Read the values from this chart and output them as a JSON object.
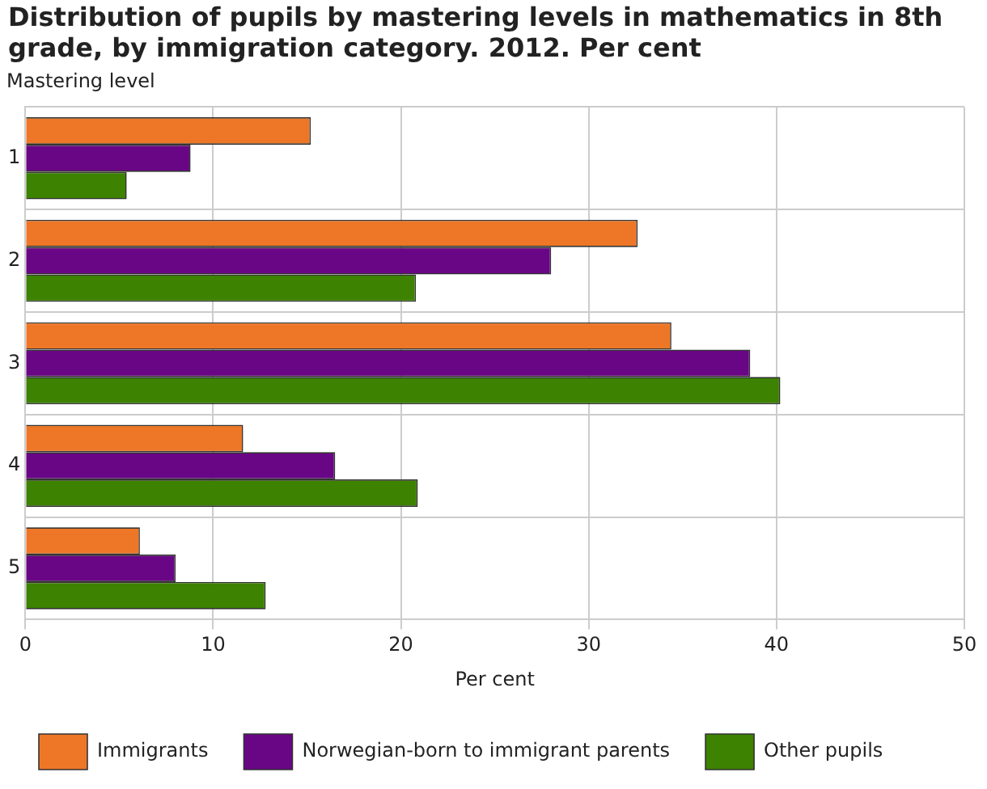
{
  "chart_data": {
    "type": "bar",
    "orientation": "horizontal",
    "title": "Distribution of pupils by mastering levels in mathematics in 8th grade, by immigration category. 2012. Per cent",
    "ylabel": "Mastering level",
    "xlabel": "Per cent",
    "categories": [
      "1",
      "2",
      "3",
      "4",
      "5"
    ],
    "series": [
      {
        "name": "Immigrants",
        "color": "#ed7727",
        "values": [
          15.2,
          32.6,
          34.4,
          11.6,
          6.1
        ]
      },
      {
        "name": "Norwegian-born to immigrant parents",
        "color": "#690685",
        "values": [
          8.8,
          28.0,
          38.6,
          16.5,
          8.0
        ]
      },
      {
        "name": "Other pupils",
        "color": "#3d8200",
        "values": [
          5.4,
          20.8,
          40.2,
          20.9,
          12.8
        ]
      }
    ],
    "xlim": [
      0,
      50
    ],
    "xticks": [
      0,
      10,
      20,
      30,
      40,
      50
    ],
    "grid": true,
    "legend": "bottom"
  }
}
